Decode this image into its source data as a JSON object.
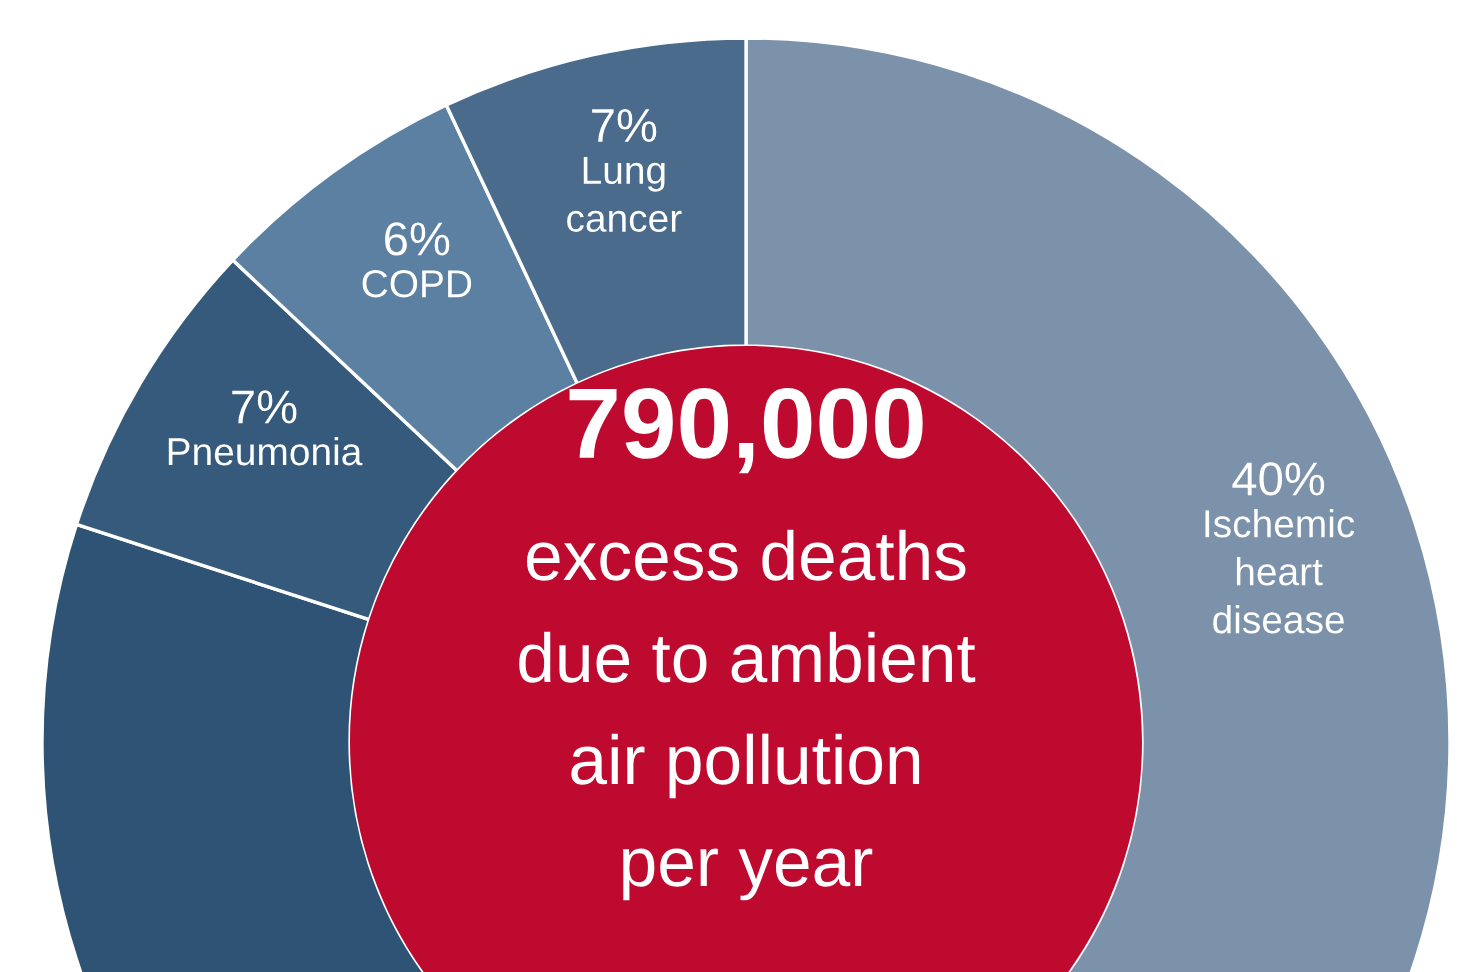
{
  "chart_data": {
    "type": "donut",
    "title": "790,000",
    "subtitle": "excess deaths due to ambient air pollution per year",
    "categories": [
      "Ischemic heart disease",
      null,
      "Pneumonia",
      "COPD",
      "Lung cancer"
    ],
    "values": [
      40,
      40,
      7,
      6,
      7
    ],
    "value_labels": [
      "40%",
      null,
      "7%",
      "6%",
      "7%"
    ],
    "colors": [
      "#7c91aa",
      "#2f5375",
      "#355a7c",
      "#5c80a1",
      "#4a6b8c"
    ],
    "legend": false
  }
}
